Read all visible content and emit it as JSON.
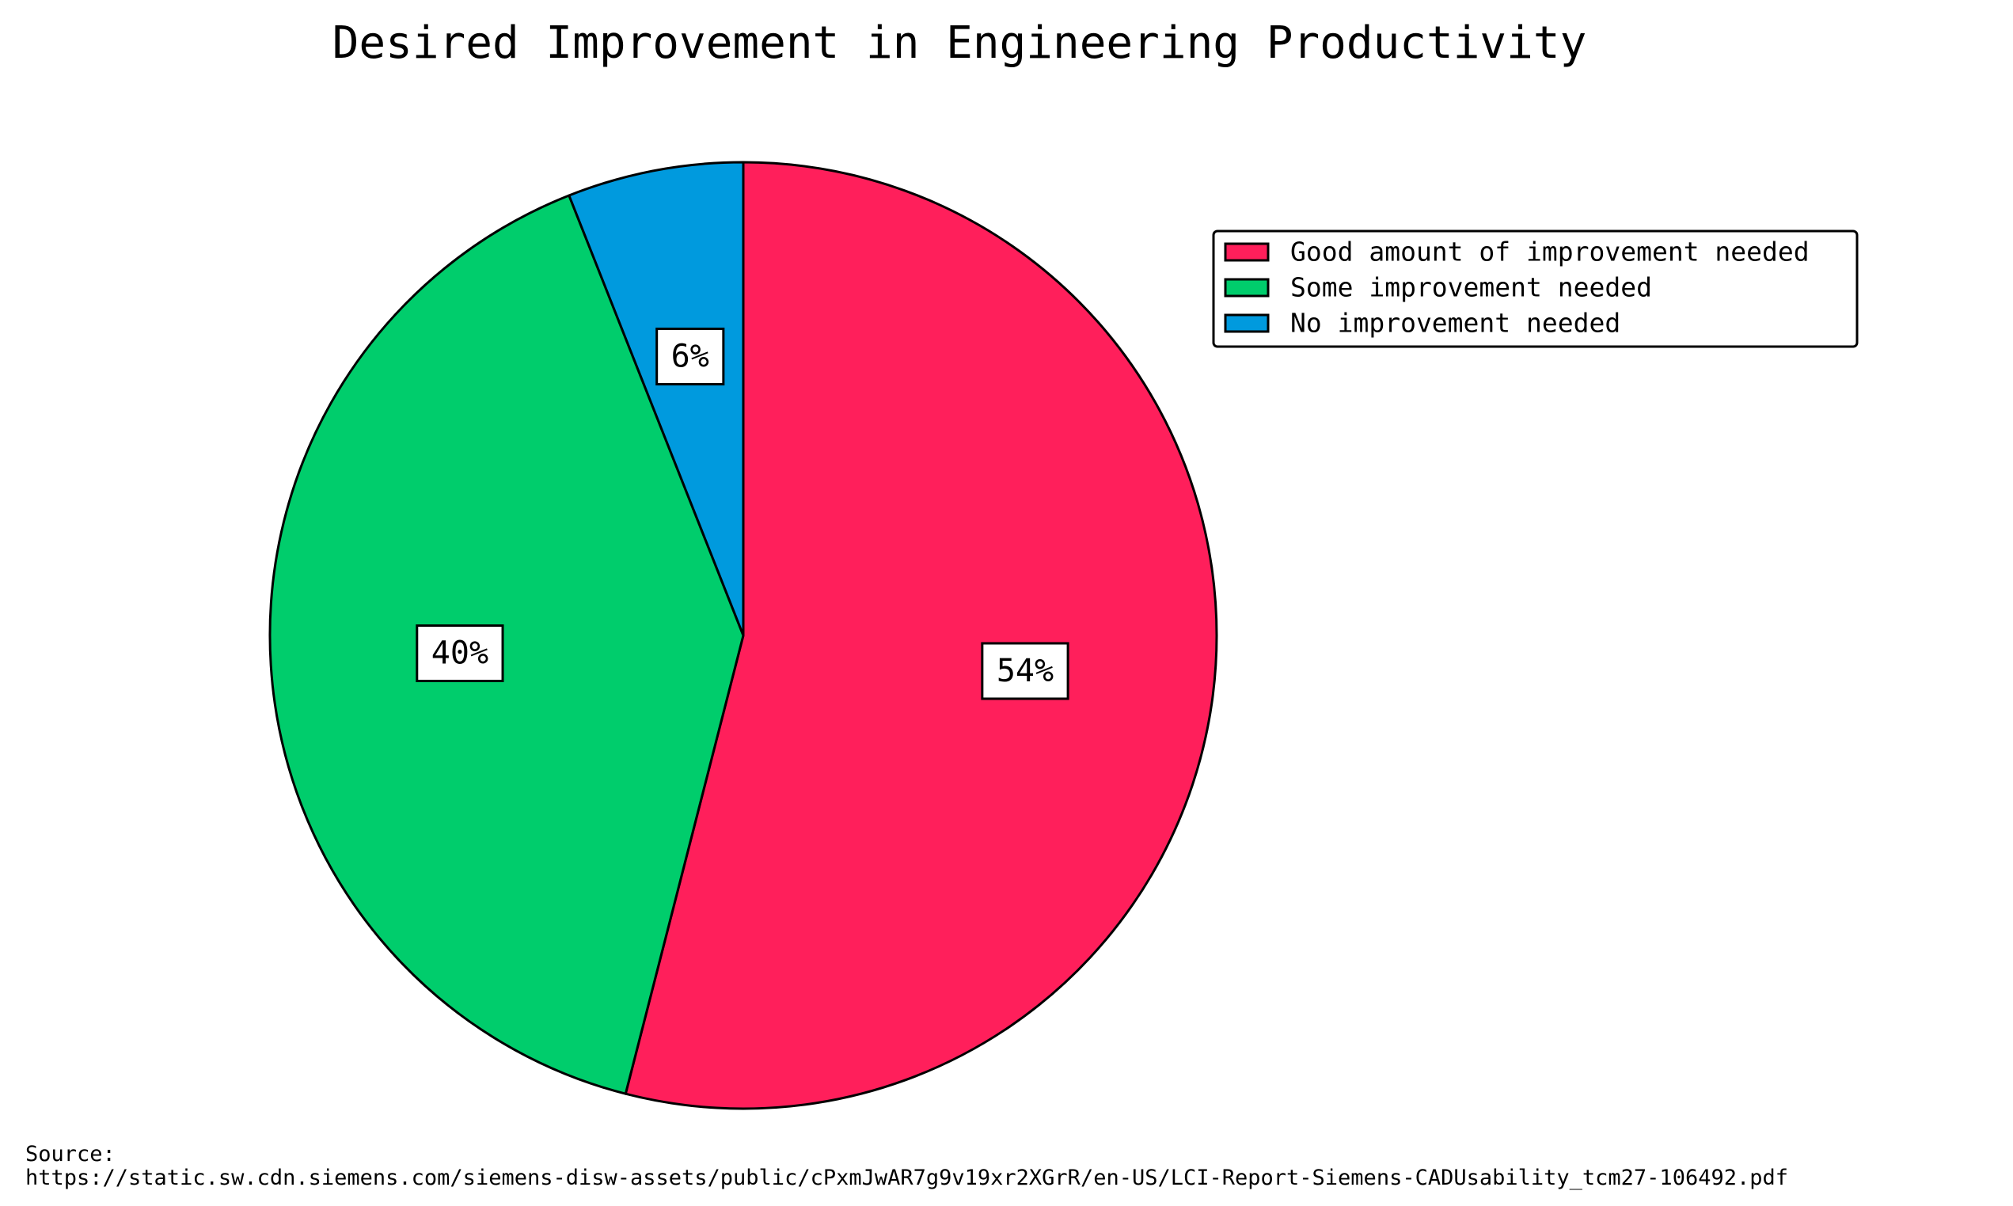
{
  "chart_data": {
    "type": "pie",
    "title": "Desired Improvement in Engineering Productivity",
    "categories": [
      "Good amount of improvement needed",
      "Some improvement needed",
      "No improvement needed"
    ],
    "values": [
      54,
      40,
      6
    ],
    "labels": [
      "54%",
      "40%",
      "6%"
    ],
    "colors": [
      "#ff1f5b",
      "#00cd6c",
      "#009ade"
    ],
    "start_angle": "12 o'clock",
    "direction": "clockwise",
    "legend_position": "top-right"
  },
  "source": {
    "label": "Source:",
    "url": "https://static.sw.cdn.siemens.com/siemens-disw-assets/public/cPxmJwAR7g9v19xr2XGrR/en-US/LCI-Report-Siemens-CADUsability_tcm27-106492.pdf"
  }
}
